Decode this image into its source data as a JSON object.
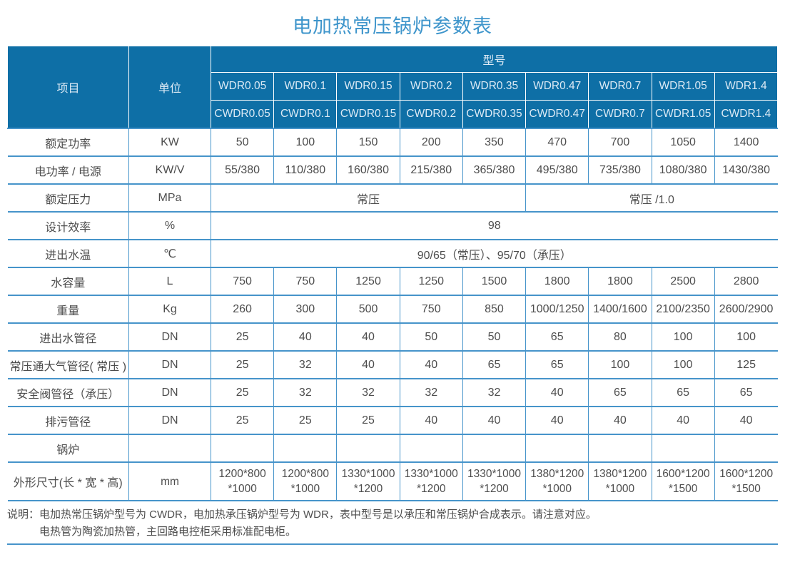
{
  "title": "电加热常压锅炉参数表",
  "colors": {
    "header_bg": "#0e6fa6",
    "header_text": "#dceaf5",
    "grid_line": "#4694ca",
    "title_text": "#3e95cb",
    "body_text": "#4d4d4d"
  },
  "table": {
    "item_header": "项目",
    "unit_header": "单位",
    "model_header": "型号",
    "wdr_models": [
      "WDR0.05",
      "WDR0.1",
      "WDR0.15",
      "WDR0.2",
      "WDR0.35",
      "WDR0.47",
      "WDR0.7",
      "WDR1.05",
      "WDR1.4"
    ],
    "cwdr_models": [
      "CWDR0.05",
      "CWDR0.1",
      "CWDR0.15",
      "CWDR0.2",
      "CWDR0.35",
      "CWDR0.47",
      "CWDR0.7",
      "CWDR1.05",
      "CWDR1.4"
    ],
    "rows": [
      {
        "label": "额定功率",
        "unit": "KW",
        "cells": [
          "50",
          "100",
          "150",
          "200",
          "350",
          "470",
          "700",
          "1050",
          "1400"
        ]
      },
      {
        "label": "电功率 / 电源",
        "unit": "KW/V",
        "cells": [
          "55/380",
          "110/380",
          "160/380",
          "215/380",
          "365/380",
          "495/380",
          "735/380",
          "1080/380",
          "1430/380"
        ]
      },
      {
        "label": "额定压力",
        "unit": "MPa",
        "cells": [
          {
            "t": "常压",
            "s": 5
          },
          {
            "t": "常压 /1.0",
            "s": 4
          }
        ]
      },
      {
        "label": "设计效率",
        "unit": "%",
        "cells": [
          {
            "t": "98",
            "s": 9
          }
        ]
      },
      {
        "label": "进出水温",
        "unit": "℃",
        "cells": [
          {
            "t": "90/65（常压）、95/70（承压）",
            "s": 9
          }
        ]
      },
      {
        "label": "水容量",
        "unit": "L",
        "cells": [
          "750",
          "750",
          "1250",
          "1250",
          "1500",
          "1800",
          "1800",
          "2500",
          "2800"
        ]
      },
      {
        "label": "重量",
        "unit": "Kg",
        "cells": [
          "260",
          "300",
          "500",
          "750",
          "850",
          "1000/1250",
          "1400/1600",
          "2100/2350",
          "2600/2900"
        ]
      },
      {
        "label": "进出水管径",
        "unit": "DN",
        "cells": [
          "25",
          "40",
          "40",
          "50",
          "50",
          "65",
          "80",
          "100",
          "100"
        ]
      },
      {
        "label": "常压通大气管径( 常压 )",
        "unit": "DN",
        "cells": [
          "25",
          "32",
          "40",
          "40",
          "65",
          "65",
          "100",
          "100",
          "125"
        ]
      },
      {
        "label": "安全阀管径（承压）",
        "unit": "DN",
        "cells": [
          "25",
          "32",
          "32",
          "32",
          "32",
          "40",
          "65",
          "65",
          "65"
        ]
      },
      {
        "label": "排污管径",
        "unit": "DN",
        "cells": [
          "25",
          "25",
          "25",
          "40",
          "40",
          "40",
          "40",
          "40",
          "40"
        ]
      },
      {
        "label": "锅炉",
        "unit": "",
        "cells": [
          "",
          "",
          "",
          "",
          "",
          "",
          "",
          "",
          ""
        ]
      },
      {
        "label": "外形尺寸(长 * 宽 * 高)",
        "unit": "mm",
        "cells": [
          "1200*800\n*1000",
          "1200*800\n*1000",
          "1330*1000\n*1200",
          "1330*1000\n*1200",
          "1330*1000\n*1200",
          "1380*1200\n*1000",
          "1380*1200\n*1000",
          "1600*1200\n*1500",
          "1600*1200\n*1500"
        ]
      }
    ]
  },
  "note": {
    "prefix": "说明：",
    "line1": "电加热常压锅炉型号为 CWDR，电加热承压锅炉型号为 WDR，表中型号是以承压和常压锅炉合成表示。请注意对应。",
    "line2": "电热管为陶瓷加热管，主回路电控柜采用标准配电柜。"
  }
}
